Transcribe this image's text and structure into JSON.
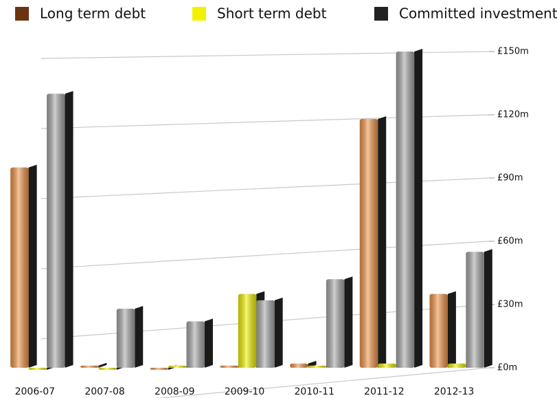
{
  "chart_data": {
    "type": "bar",
    "categories": [
      "2006-07",
      "2007-08",
      "2008-09",
      "2009-10",
      "2010-11",
      "2011-12",
      "2012-13"
    ],
    "series": [
      {
        "name": "Long term debt",
        "color": "#f0954a",
        "legend_color": "#6b3512",
        "values": [
          95,
          1,
          0,
          1,
          2,
          118,
          35
        ]
      },
      {
        "name": "Short term debt",
        "color": "#f2f200",
        "legend_color": "#f2f200",
        "values": [
          0,
          0,
          1,
          35,
          1,
          2,
          2
        ]
      },
      {
        "name": "Committed investment",
        "color": "#a8a8a8",
        "legend_color": "#222222",
        "values": [
          130,
          28,
          22,
          32,
          42,
          150,
          55
        ]
      }
    ],
    "ylim": [
      0,
      150
    ],
    "yticks": [
      {
        "value": 0,
        "label": "£0m"
      },
      {
        "value": 30,
        "label": "£30m"
      },
      {
        "value": 60,
        "label": "£60m"
      },
      {
        "value": 90,
        "label": "£90m"
      },
      {
        "value": 120,
        "label": "£120m"
      },
      {
        "value": 150,
        "label": "£150m"
      }
    ],
    "grid": true
  }
}
